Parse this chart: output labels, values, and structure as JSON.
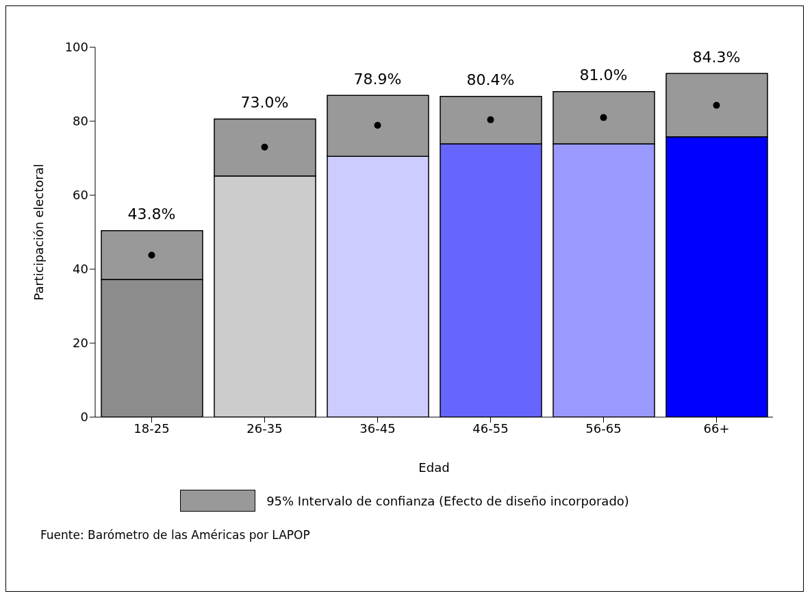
{
  "chart_data": {
    "type": "bar",
    "stacked": true,
    "xlabel": "Edad",
    "ylabel": "Participación electoral",
    "categories": [
      "18-25",
      "26-35",
      "36-45",
      "46-55",
      "56-65",
      "66+"
    ],
    "series": [
      {
        "colors": [
          "#8c8c8c",
          "#cccccc",
          "#ccccff",
          "#6666ff",
          "#9999ff",
          "#0000ff"
        ],
        "values": [
          37.2,
          65.2,
          70.5,
          73.9,
          73.9,
          75.8
        ]
      },
      {
        "name": "95% Intervalo de confianza (Efecto de diseño incorporado)",
        "color": "#999999",
        "values": [
          13.2,
          15.4,
          16.5,
          12.8,
          14.1,
          17.1
        ]
      },
      {
        "type": "scatter",
        "color": "#000000",
        "marker": "circle",
        "values": [
          43.8,
          73.0,
          78.9,
          80.4,
          81.0,
          84.3
        ],
        "value_labels": [
          "43.8%",
          "73.0%",
          "78.9%",
          "80.4%",
          "81.0%",
          "84.3%"
        ]
      }
    ],
    "ylim": [
      0,
      100
    ],
    "yticks": [
      0,
      20,
      40,
      60,
      80,
      100
    ],
    "legend": "bottom",
    "annotations": [
      "Fuente: Barómetro de las Américas por LAPOP"
    ]
  }
}
